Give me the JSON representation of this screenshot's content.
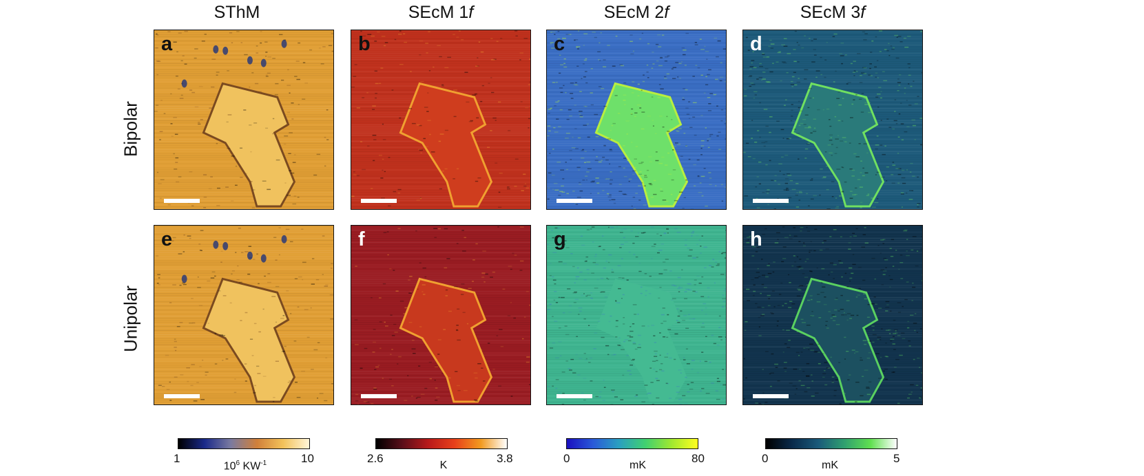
{
  "columns": [
    {
      "id": "sthm",
      "base": "SThM",
      "freq": ""
    },
    {
      "id": "secm1",
      "base": "SEcM 1",
      "freq": "f"
    },
    {
      "id": "secm2",
      "base": "SEcM 2",
      "freq": "f"
    },
    {
      "id": "secm3",
      "base": "SEcM 3",
      "freq": "f"
    }
  ],
  "rows": [
    "Bipolar",
    "Unipolar"
  ],
  "panels": [
    "a",
    "b",
    "c",
    "d",
    "e",
    "f",
    "g",
    "h"
  ],
  "colorbars": [
    {
      "min": "1",
      "max": "10",
      "unit_prefix": "10",
      "unit_exp": "6",
      "unit_main": " KW",
      "unit_exp2": "-1",
      "unit_plain": "",
      "gradient": [
        "#000000",
        "#1a2a8a",
        "#7a7aa0",
        "#d0803a",
        "#f3c25a",
        "#fff5d8"
      ]
    },
    {
      "min": "2.6",
      "max": "3.8",
      "unit_plain": "K",
      "gradient": [
        "#000000",
        "#5a0f1a",
        "#b81a1a",
        "#e8401a",
        "#f29a20",
        "#ffffff"
      ]
    },
    {
      "min": "0",
      "max": "80",
      "unit_plain": "mK",
      "gradient": [
        "#1a0fc0",
        "#2a5ad8",
        "#2aa0c0",
        "#40d070",
        "#a0e830",
        "#ffff20"
      ]
    },
    {
      "min": "0",
      "max": "5",
      "unit_plain": "mK",
      "gradient": [
        "#000000",
        "#0a2a4a",
        "#1a5a7a",
        "#30a070",
        "#60e050",
        "#ffffff"
      ]
    }
  ],
  "panel_colors": {
    "a": {
      "bg": "#e19f35",
      "flake": "#f0c25e",
      "edge": "#7a4a20",
      "spots": "#22347a"
    },
    "b": {
      "bg": "#c0311d",
      "flake": "#cf3d1e",
      "edge": "#f0a030",
      "spots": "#000000"
    },
    "c": {
      "bg": "#3a6ec4",
      "flake": "#6ee06a",
      "edge": "#b8ee40",
      "spots": "#000000"
    },
    "d": {
      "bg": "#1d5a7a",
      "flake": "#2a7a7a",
      "edge": "#70e060",
      "spots": "#ffffff"
    },
    "e": {
      "bg": "#e19f35",
      "flake": "#f0c25e",
      "edge": "#7a4a20",
      "spots": "#22347a"
    },
    "f": {
      "bg": "#9a1c22",
      "flake": "#c8391e",
      "edge": "#f0a030",
      "spots": "#000000"
    },
    "g": {
      "bg": "#3fb590",
      "flake": "#44ba92",
      "edge": "#3a7ac0",
      "spots": "#000000"
    },
    "h": {
      "bg": "#12344e",
      "flake": "#1c5060",
      "edge": "#5ad060",
      "spots": "#000000"
    }
  }
}
